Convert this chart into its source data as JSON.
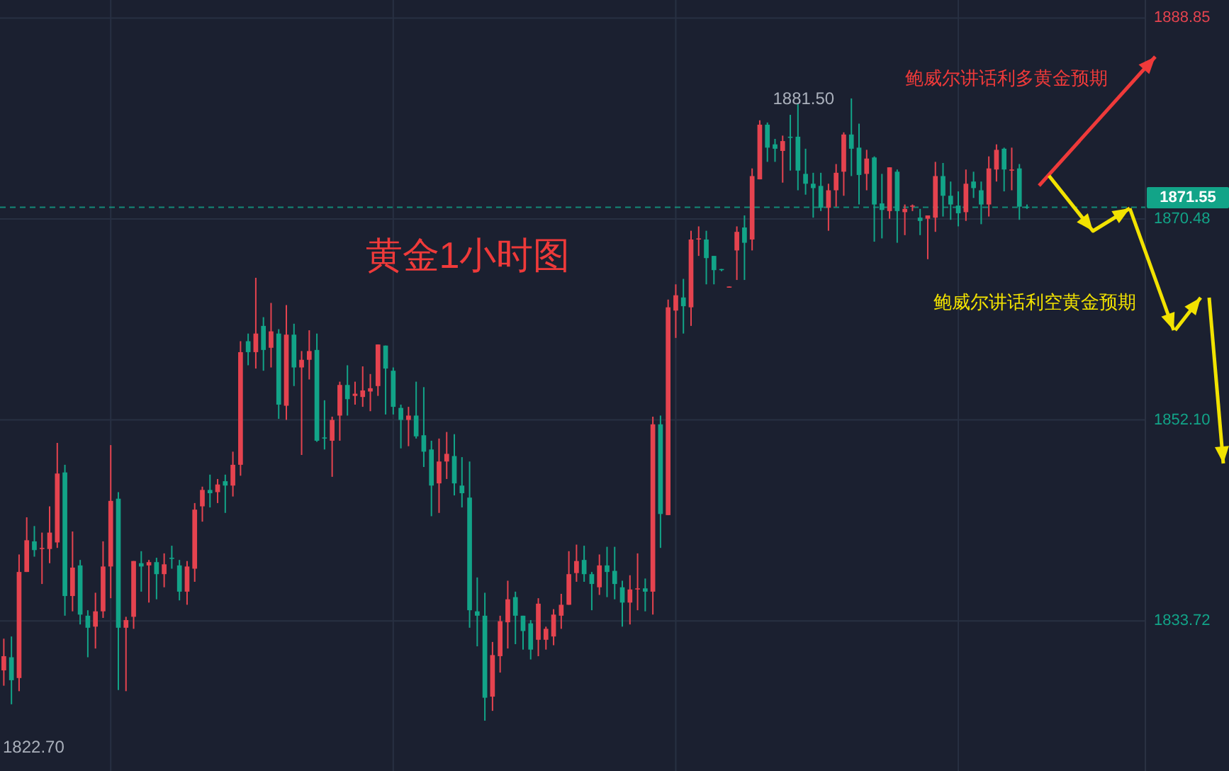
{
  "chart_data": {
    "type": "candlestick",
    "title": "黄金1小时图",
    "annotations": [
      "1881.50",
      "1822.70",
      "鲍威尔讲话利多黄金预期",
      "鲍威尔讲话利空黄金预期"
    ],
    "categories": [
      null,
      null,
      null,
      null,
      null,
      null,
      null,
      null,
      null,
      null,
      null,
      null,
      null,
      null,
      null,
      null,
      null,
      null,
      null,
      null,
      null,
      null,
      null,
      null,
      null,
      null,
      null,
      null,
      null,
      null,
      null,
      null,
      null,
      null,
      null,
      null,
      null,
      null,
      null,
      null,
      null,
      null,
      null,
      null,
      null,
      null,
      null,
      null,
      null,
      null,
      null,
      null,
      null,
      null,
      null,
      null,
      null,
      null,
      null,
      null,
      null,
      null,
      null,
      null,
      null,
      null,
      null,
      null,
      null,
      null,
      null,
      null,
      null,
      null,
      null,
      null,
      null,
      null,
      null,
      null,
      null,
      null,
      null,
      null,
      null,
      null,
      null,
      null,
      null,
      null,
      null,
      null,
      null,
      null,
      null,
      null,
      null,
      null,
      null,
      null,
      null,
      null,
      null,
      null,
      null,
      null,
      null,
      null,
      null,
      null,
      null,
      null,
      null,
      null,
      null,
      null,
      null,
      null,
      null,
      null,
      null,
      null,
      null,
      null,
      null,
      null,
      null,
      null,
      null,
      null,
      null,
      null,
      null,
      null,
      null,
      null,
      null,
      null,
      null,
      null,
      null,
      null,
      null,
      null,
      null,
      null,
      null,
      null,
      null,
      null
    ],
    "ohlc": [
      [
        1829.2,
        1832.1,
        1827.8,
        1830.5
      ],
      [
        1830.4,
        1832.3,
        1826.1,
        1828.3
      ],
      [
        1828.5,
        1839.8,
        1827.3,
        1838.2
      ],
      [
        1838.2,
        1843.2,
        1838.2,
        1841.1
      ],
      [
        1841.0,
        1842.4,
        1839.6,
        1840.2
      ],
      [
        1840.3,
        1841.8,
        1837.1,
        1840.4
      ],
      [
        1840.3,
        1844.2,
        1839.0,
        1841.8
      ],
      [
        1840.9,
        1850.0,
        1840.4,
        1847.2
      ],
      [
        1847.3,
        1848.0,
        1834.2,
        1836.0
      ],
      [
        1836.0,
        1841.9,
        1834.6,
        1838.6
      ],
      [
        1838.8,
        1839.3,
        1833.4,
        1834.3
      ],
      [
        1834.2,
        1834.7,
        1830.4,
        1833.1
      ],
      [
        1833.2,
        1836.3,
        1831.2,
        1834.6
      ],
      [
        1834.6,
        1841.0,
        1834.0,
        1838.7
      ],
      [
        1838.7,
        1849.8,
        1835.8,
        1844.7
      ],
      [
        1844.9,
        1845.5,
        1827.4,
        1833.1
      ],
      [
        1833.1,
        1834.1,
        1827.3,
        1833.8
      ],
      [
        1834.1,
        1839.2,
        1833.0,
        1839.2
      ],
      [
        1839.0,
        1840.1,
        1836.4,
        1838.7
      ],
      [
        1838.8,
        1839.3,
        1835.4,
        1839.1
      ],
      [
        1839.1,
        1839.5,
        1835.7,
        1838.0
      ],
      [
        1838.0,
        1839.9,
        1836.8,
        1838.9
      ],
      [
        1839.5,
        1840.6,
        1838.5,
        1839.4
      ],
      [
        1838.8,
        1839.3,
        1835.6,
        1836.4
      ],
      [
        1836.4,
        1839.2,
        1835.2,
        1838.7
      ],
      [
        1838.5,
        1844.5,
        1837.3,
        1843.9
      ],
      [
        1844.2,
        1846.0,
        1842.8,
        1845.7
      ],
      [
        1845.7,
        1847.1,
        1844.1,
        1845.4
      ],
      [
        1845.5,
        1846.7,
        1844.5,
        1846.2
      ],
      [
        1846.5,
        1847.1,
        1843.6,
        1846.1
      ],
      [
        1846.1,
        1849.2,
        1845.1,
        1848.0
      ],
      [
        1848.0,
        1859.3,
        1847.0,
        1858.3
      ],
      [
        1859.3,
        1860.0,
        1857.1,
        1858.3
      ],
      [
        1858.3,
        1865.1,
        1856.8,
        1860.0
      ],
      [
        1860.7,
        1861.5,
        1856.6,
        1858.5
      ],
      [
        1858.7,
        1862.8,
        1856.9,
        1860.2
      ],
      [
        1860.0,
        1860.4,
        1852.2,
        1853.5
      ],
      [
        1853.4,
        1862.6,
        1852.1,
        1859.9
      ],
      [
        1859.9,
        1860.9,
        1855.2,
        1856.9
      ],
      [
        1856.9,
        1858.4,
        1848.9,
        1857.6
      ],
      [
        1857.6,
        1860.3,
        1855.8,
        1858.4
      ],
      [
        1858.5,
        1860.0,
        1850.1,
        1850.2
      ],
      [
        1850.5,
        1853.9,
        1849.4,
        1850.4
      ],
      [
        1850.2,
        1852.4,
        1846.9,
        1852.1
      ],
      [
        1852.5,
        1855.6,
        1850.2,
        1855.3
      ],
      [
        1855.3,
        1857.1,
        1852.5,
        1854.0
      ],
      [
        1854.3,
        1855.6,
        1853.5,
        1854.5
      ],
      [
        1854.2,
        1857.0,
        1853.3,
        1854.8
      ],
      [
        1854.7,
        1856.3,
        1852.9,
        1855.0
      ],
      [
        1855.2,
        1859.0,
        1854.3,
        1859.0
      ],
      [
        1858.9,
        1858.9,
        1852.6,
        1856.8
      ],
      [
        1856.6,
        1856.9,
        1852.6,
        1853.3
      ],
      [
        1853.2,
        1853.5,
        1849.5,
        1852.1
      ],
      [
        1852.1,
        1853.3,
        1849.7,
        1852.5
      ],
      [
        1852.5,
        1855.6,
        1850.4,
        1850.6
      ],
      [
        1850.7,
        1855.1,
        1847.8,
        1849.2
      ],
      [
        1849.4,
        1850.2,
        1843.3,
        1846.1
      ],
      [
        1846.3,
        1850.4,
        1843.6,
        1848.3
      ],
      [
        1848.3,
        1851.0,
        1846.7,
        1849.0
      ],
      [
        1848.8,
        1850.8,
        1845.2,
        1846.3
      ],
      [
        1846.1,
        1848.7,
        1844.1,
        1845.4
      ],
      [
        1845.0,
        1848.3,
        1833.1,
        1834.7
      ],
      [
        1834.6,
        1837.7,
        1831.4,
        1834.2
      ],
      [
        1834.2,
        1836.3,
        1824.6,
        1826.7
      ],
      [
        1826.8,
        1831.8,
        1825.5,
        1830.6
      ],
      [
        1830.5,
        1834.2,
        1829.0,
        1833.7
      ],
      [
        1833.6,
        1837.4,
        1831.2,
        1835.7
      ],
      [
        1835.9,
        1836.4,
        1831.6,
        1834.2
      ],
      [
        1834.2,
        1834.2,
        1831.1,
        1832.8
      ],
      [
        1833.5,
        1833.8,
        1830.2,
        1831.1
      ],
      [
        1832.0,
        1835.8,
        1830.5,
        1835.3
      ],
      [
        1832.0,
        1833.2,
        1831.1,
        1833.0
      ],
      [
        1832.3,
        1834.8,
        1831.5,
        1834.3
      ],
      [
        1834.2,
        1836.2,
        1833.0,
        1835.2
      ],
      [
        1835.2,
        1840.1,
        1835.2,
        1838.0
      ],
      [
        1838.1,
        1840.7,
        1837.3,
        1839.2
      ],
      [
        1839.3,
        1840.6,
        1837.3,
        1838.0
      ],
      [
        1838.0,
        1838.2,
        1834.7,
        1837.1
      ],
      [
        1836.8,
        1839.8,
        1836.1,
        1838.8
      ],
      [
        1838.8,
        1840.5,
        1835.9,
        1838.2
      ],
      [
        1838.3,
        1840.5,
        1835.7,
        1837.1
      ],
      [
        1836.8,
        1837.4,
        1833.2,
        1835.4
      ],
      [
        1835.4,
        1837.9,
        1833.4,
        1836.6
      ],
      [
        1836.6,
        1839.9,
        1834.7,
        1836.7
      ],
      [
        1836.7,
        1837.6,
        1834.6,
        1836.4
      ],
      [
        1836.4,
        1852.4,
        1834.3,
        1851.7
      ],
      [
        1851.7,
        1852.5,
        1840.4,
        1843.5
      ],
      [
        1843.4,
        1863.1,
        1843.4,
        1862.4
      ],
      [
        1862.1,
        1864.5,
        1859.6,
        1863.5
      ],
      [
        1863.3,
        1865.0,
        1860.0,
        1862.5
      ],
      [
        1862.4,
        1869.4,
        1860.7,
        1868.6
      ],
      [
        1868.6,
        1869.8,
        1867.1,
        1868.7
      ],
      [
        1868.6,
        1869.4,
        1864.5,
        1866.9
      ],
      [
        1867.1,
        1867.1,
        1864.5,
        1865.8
      ],
      [
        1865.9,
        1865.9,
        1865.7,
        1865.8
      ],
      [
        1864.2,
        1864.3,
        1864.2,
        1864.3
      ],
      [
        1867.6,
        1869.8,
        1864.9,
        1869.3
      ],
      [
        1869.7,
        1870.8,
        1864.9,
        1868.3
      ],
      [
        1868.6,
        1875.1,
        1867.6,
        1874.4
      ],
      [
        1874.1,
        1879.5,
        1874.1,
        1879.1
      ],
      [
        1879.1,
        1879.3,
        1875.7,
        1877.0
      ],
      [
        1877.3,
        1877.8,
        1875.7,
        1876.9
      ],
      [
        1876.7,
        1878.1,
        1873.8,
        1877.6
      ],
      [
        1878.0,
        1880.0,
        1874.9,
        1877.9
      ],
      [
        1878.0,
        1881.0,
        1873.1,
        1874.9
      ],
      [
        1874.6,
        1876.9,
        1872.7,
        1873.7
      ],
      [
        1873.7,
        1874.7,
        1870.6,
        1873.3
      ],
      [
        1873.5,
        1874.7,
        1871.2,
        1871.5
      ],
      [
        1871.5,
        1873.7,
        1869.4,
        1873.1
      ],
      [
        1873.1,
        1875.5,
        1871.6,
        1874.7
      ],
      [
        1874.8,
        1878.4,
        1872.6,
        1878.2
      ],
      [
        1878.2,
        1881.5,
        1874.4,
        1876.9
      ],
      [
        1877.0,
        1879.2,
        1871.8,
        1874.5
      ],
      [
        1874.6,
        1876.8,
        1873.1,
        1876.0
      ],
      [
        1876.1,
        1876.2,
        1868.4,
        1871.8
      ],
      [
        1871.9,
        1874.6,
        1868.7,
        1871.3
      ],
      [
        1871.2,
        1875.2,
        1870.5,
        1875.2
      ],
      [
        1874.8,
        1875.0,
        1868.3,
        1871.2
      ],
      [
        1871.1,
        1871.8,
        1869.0,
        1871.4
      ],
      [
        1871.7,
        1871.8,
        1871.2,
        1871.7
      ],
      [
        1870.6,
        1871.4,
        1869.0,
        1870.3
      ],
      [
        1870.5,
        1870.8,
        1866.8,
        1870.8
      ],
      [
        1870.6,
        1875.7,
        1869.3,
        1874.4
      ],
      [
        1874.4,
        1875.6,
        1870.7,
        1872.6
      ],
      [
        1872.6,
        1873.9,
        1870.4,
        1871.8
      ],
      [
        1871.7,
        1873.0,
        1869.8,
        1871.0
      ],
      [
        1871.1,
        1875.0,
        1870.3,
        1873.7
      ],
      [
        1873.9,
        1874.8,
        1872.4,
        1873.3
      ],
      [
        1873.1,
        1873.9,
        1870.0,
        1871.8
      ],
      [
        1871.8,
        1876.2,
        1870.7,
        1875.1
      ],
      [
        1875.0,
        1877.3,
        1873.9,
        1876.8
      ],
      [
        1876.9,
        1877.0,
        1873.0,
        1875.0
      ],
      [
        1875.0,
        1877.0,
        1873.1,
        1875.0
      ],
      [
        1875.1,
        1875.5,
        1870.4,
        1871.6
      ],
      [
        1871.6,
        1871.8,
        1871.4,
        1871.55
      ],
      null,
      null,
      null,
      null,
      null,
      null,
      null,
      null,
      null,
      null,
      null,
      null,
      null,
      null,
      null
    ],
    "colors": [
      "#e5434f",
      "#12a488",
      "#e5434f",
      "#e5434f",
      "#12a488",
      "#e5434f",
      "#e5434f",
      "#e5434f",
      "#12a488",
      "#e5434f",
      "#12a488",
      "#12a488",
      "#e5434f",
      "#e5434f",
      "#e5434f",
      "#12a488",
      "#e5434f",
      "#e5434f",
      "#12a488",
      "#e5434f",
      "#12a488",
      "#e5434f",
      "#12a488",
      "#12a488",
      "#e5434f",
      "#e5434f",
      "#e5434f",
      "#12a488",
      "#e5434f",
      "#12a488",
      "#e5434f",
      "#e5434f",
      "#12a488",
      "#e5434f",
      "#12a488",
      "#e5434f",
      "#12a488",
      "#e5434f",
      "#12a488",
      "#e5434f",
      "#e5434f",
      "#12a488",
      "#12a488",
      "#e5434f",
      "#e5434f",
      "#12a488",
      "#e5434f",
      "#e5434f",
      "#e5434f",
      "#e5434f",
      "#12a488",
      "#12a488",
      "#12a488",
      "#e5434f",
      "#12a488",
      "#12a488",
      "#12a488",
      "#e5434f",
      "#e5434f",
      "#12a488",
      "#12a488",
      "#12a488",
      "#12a488",
      "#12a488",
      "#e5434f",
      "#e5434f",
      "#e5434f",
      "#12a488",
      "#12a488",
      "#12a488",
      "#e5434f",
      "#e5434f",
      "#e5434f",
      "#e5434f",
      "#e5434f",
      "#e5434f",
      "#12a488",
      "#12a488",
      "#e5434f",
      "#12a488",
      "#12a488",
      "#12a488",
      "#e5434f",
      "#e5434f",
      "#12a488",
      "#e5434f",
      "#12a488",
      "#e5434f",
      "#e5434f",
      "#12a488",
      "#e5434f",
      "#e5434f",
      "#12a488",
      "#12a488",
      "#12a488",
      "#e5434f",
      "#e5434f",
      "#12a488",
      "#e5434f",
      "#e5434f",
      "#12a488",
      "#12a488",
      "#e5434f",
      "#12a488",
      "#12a488",
      "#12a488",
      "#12a488",
      "#12a488",
      "#e5434f",
      "#e5434f",
      "#e5434f",
      "#12a488",
      "#12a488",
      "#e5434f",
      "#12a488",
      "#12a488",
      "#e5434f",
      "#12a488",
      "#e5434f",
      "#e5434f",
      "#12a488",
      "#e5434f",
      "#e5434f",
      "#12a488",
      "#12a488",
      "#12a488",
      "#e5434f",
      "#12a488",
      "#12a488",
      "#e5434f",
      "#e5434f",
      "#12a488",
      "#e5434f",
      "#12a488",
      "#12a488",
      null,
      null,
      null,
      null,
      null,
      null,
      null,
      null,
      null,
      null,
      null,
      null,
      null,
      null,
      null
    ],
    "ylim": [
      1820.0,
      1890.5
    ],
    "yticks": [
      1833.72,
      {
        "value": 1852.1,
        "label": "1852.10"
      },
      1870.48,
      1888.85
    ],
    "grid": true,
    "tick_labels": "y",
    "ref_lines": [
      {
        "axis": "y",
        "value": 1871.55,
        "label": "1871.55",
        "color": "#12a488",
        "line_style": "dashed"
      }
    ]
  }
}
